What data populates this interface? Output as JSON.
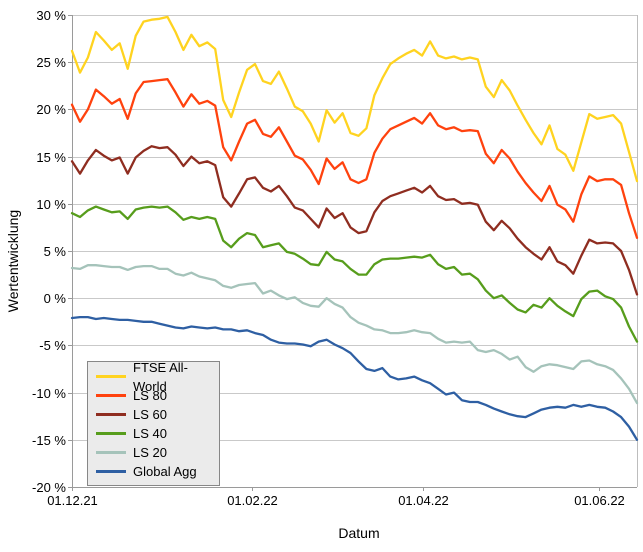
{
  "chart": {
    "y_axis_title": "Wertentwicklung",
    "x_axis_title": "Datum",
    "colors": {
      "background": "#ffffff",
      "gridline": "#c9c9c9",
      "axis_line": "#9a9a9a",
      "plot_border": "#bdbdbd",
      "legend_background": "#ebebeb",
      "legend_border": "#878787"
    }
  },
  "chart_data": {
    "type": "line",
    "title": "",
    "xlabel": "Datum",
    "ylabel": "Wertentwicklung",
    "ylim": [
      -20,
      30
    ],
    "grid": true,
    "legend_position": "bottom-left",
    "y_ticks": [
      {
        "value": 30,
        "label": "30 %"
      },
      {
        "value": 25,
        "label": "25 %"
      },
      {
        "value": 20,
        "label": "20 %"
      },
      {
        "value": 15,
        "label": "15 %"
      },
      {
        "value": 10,
        "label": "10 %"
      },
      {
        "value": 5,
        "label": "5 %"
      },
      {
        "value": 0,
        "label": "0 %"
      },
      {
        "value": -5,
        "label": "-5 %"
      },
      {
        "value": -10,
        "label": "-10 %"
      },
      {
        "value": -15,
        "label": "-15 %"
      },
      {
        "value": -20,
        "label": "-20 %"
      }
    ],
    "x_total_days": 195,
    "x_ticks": [
      {
        "day": 0,
        "label": "01.12.21"
      },
      {
        "day": 62,
        "label": "01.02.22"
      },
      {
        "day": 121,
        "label": "01.04.22"
      },
      {
        "day": 182,
        "label": "01.06.22"
      }
    ],
    "series": [
      {
        "name": "FTSE All-World",
        "color": "#FFD320",
        "values": [
          26.2,
          23.9,
          25.5,
          28.2,
          27.3,
          26.3,
          27.0,
          24.3,
          27.8,
          29.3,
          29.5,
          29.6,
          29.8,
          28.2,
          26.3,
          27.9,
          26.7,
          27.1,
          26.4,
          21.0,
          19.2,
          21.8,
          24.2,
          24.8,
          23.0,
          22.7,
          24.0,
          22.2,
          20.3,
          19.8,
          18.5,
          16.6,
          19.9,
          18.6,
          19.6,
          17.5,
          17.2,
          18.0,
          21.5,
          23.3,
          24.8,
          25.4,
          25.9,
          26.3,
          25.7,
          27.2,
          25.7,
          25.4,
          25.6,
          25.3,
          25.5,
          25.3,
          22.4,
          21.3,
          23.1,
          22.0,
          20.4,
          18.9,
          17.5,
          16.3,
          18.3,
          15.8,
          15.2,
          13.5,
          16.5,
          19.5,
          19.0,
          19.2,
          19.4,
          18.5,
          15.5,
          12.4
        ]
      },
      {
        "name": "LS 80",
        "color": "#FF420E",
        "values": [
          20.5,
          18.7,
          20.0,
          22.1,
          21.4,
          20.6,
          21.1,
          19.0,
          21.7,
          22.9,
          23.0,
          23.1,
          23.2,
          21.8,
          20.3,
          21.6,
          20.6,
          20.9,
          20.4,
          16.0,
          14.6,
          16.6,
          18.5,
          18.9,
          17.4,
          17.1,
          18.1,
          16.6,
          15.1,
          14.7,
          13.6,
          12.1,
          14.8,
          13.7,
          14.4,
          12.6,
          12.2,
          12.6,
          15.4,
          16.9,
          17.9,
          18.3,
          18.7,
          19.1,
          18.5,
          19.6,
          18.3,
          17.9,
          18.1,
          17.7,
          17.8,
          17.7,
          15.3,
          14.3,
          15.7,
          14.8,
          13.4,
          12.2,
          11.2,
          10.3,
          11.9,
          9.9,
          9.4,
          8.1,
          11.0,
          12.9,
          12.4,
          12.6,
          12.6,
          12.0,
          9.0,
          6.4
        ]
      },
      {
        "name": "LS 60",
        "color": "#8F2D20",
        "values": [
          14.5,
          13.2,
          14.6,
          15.7,
          15.1,
          14.6,
          14.9,
          13.2,
          14.9,
          15.6,
          16.1,
          15.9,
          16.0,
          15.2,
          14.0,
          15.0,
          14.3,
          14.5,
          14.1,
          10.7,
          9.7,
          11.1,
          12.6,
          12.8,
          11.7,
          11.3,
          11.9,
          10.8,
          9.6,
          9.3,
          8.4,
          7.5,
          9.5,
          8.5,
          9.0,
          7.5,
          6.9,
          7.1,
          9.1,
          10.3,
          10.8,
          11.1,
          11.4,
          11.7,
          11.2,
          11.9,
          10.8,
          10.4,
          10.5,
          10.0,
          10.1,
          9.9,
          8.1,
          7.2,
          8.2,
          7.4,
          6.3,
          5.4,
          4.7,
          4.1,
          5.4,
          3.9,
          3.5,
          2.6,
          4.5,
          6.2,
          5.8,
          5.9,
          5.8,
          5.0,
          3.0,
          0.4
        ]
      },
      {
        "name": "LS 40",
        "color": "#579D1C",
        "values": [
          9.0,
          8.6,
          9.3,
          9.7,
          9.4,
          9.1,
          9.2,
          8.4,
          9.4,
          9.6,
          9.7,
          9.6,
          9.7,
          9.1,
          8.3,
          8.6,
          8.4,
          8.6,
          8.4,
          6.1,
          5.4,
          6.3,
          6.9,
          6.7,
          5.4,
          5.6,
          5.8,
          4.9,
          4.7,
          4.2,
          3.6,
          3.5,
          4.9,
          4.1,
          3.9,
          3.1,
          2.5,
          2.5,
          3.6,
          4.1,
          4.2,
          4.2,
          4.3,
          4.4,
          4.3,
          4.6,
          3.6,
          3.1,
          3.3,
          2.5,
          2.6,
          2.0,
          0.8,
          0.0,
          0.3,
          -0.5,
          -1.2,
          -1.5,
          -0.7,
          -1.0,
          0.0,
          -0.8,
          -1.4,
          -1.9,
          -0.1,
          0.7,
          0.8,
          0.2,
          -0.1,
          -1.0,
          -3.0,
          -4.6
        ]
      },
      {
        "name": "LS 20",
        "color": "#A5C3BA",
        "values": [
          3.2,
          3.1,
          3.5,
          3.5,
          3.4,
          3.3,
          3.3,
          3.0,
          3.3,
          3.4,
          3.4,
          3.1,
          3.1,
          2.6,
          2.4,
          2.7,
          2.3,
          2.1,
          1.9,
          1.3,
          1.1,
          1.4,
          1.5,
          1.6,
          0.5,
          0.8,
          0.3,
          -0.1,
          0.1,
          -0.5,
          -0.8,
          -0.9,
          0.0,
          -0.6,
          -1.0,
          -2.0,
          -2.6,
          -2.9,
          -3.3,
          -3.4,
          -3.7,
          -3.7,
          -3.6,
          -3.4,
          -3.6,
          -3.7,
          -4.3,
          -4.7,
          -4.6,
          -4.7,
          -4.6,
          -5.5,
          -5.7,
          -5.5,
          -5.9,
          -6.5,
          -6.2,
          -7.3,
          -7.8,
          -7.2,
          -7.0,
          -7.1,
          -7.3,
          -7.5,
          -6.7,
          -6.6,
          -7.0,
          -7.2,
          -7.6,
          -8.5,
          -9.6,
          -11.1
        ]
      },
      {
        "name": "Global Agg",
        "color": "#2E5FA3",
        "values": [
          -2.1,
          -2.0,
          -2.0,
          -2.2,
          -2.1,
          -2.2,
          -2.3,
          -2.3,
          -2.4,
          -2.5,
          -2.5,
          -2.7,
          -2.9,
          -3.1,
          -3.2,
          -3.0,
          -3.1,
          -3.2,
          -3.1,
          -3.3,
          -3.3,
          -3.5,
          -3.4,
          -3.7,
          -3.9,
          -4.4,
          -4.7,
          -4.8,
          -4.8,
          -4.9,
          -5.1,
          -4.6,
          -4.4,
          -4.9,
          -5.3,
          -5.8,
          -6.7,
          -7.5,
          -7.7,
          -7.4,
          -8.3,
          -8.6,
          -8.5,
          -8.3,
          -8.7,
          -9.0,
          -9.6,
          -10.2,
          -10.0,
          -10.8,
          -11.0,
          -11.0,
          -11.3,
          -11.7,
          -12.0,
          -12.3,
          -12.5,
          -12.6,
          -12.2,
          -11.8,
          -11.6,
          -11.5,
          -11.6,
          -11.3,
          -11.5,
          -11.3,
          -11.5,
          -11.6,
          -12.0,
          -12.6,
          -13.6,
          -15.0
        ]
      }
    ]
  }
}
